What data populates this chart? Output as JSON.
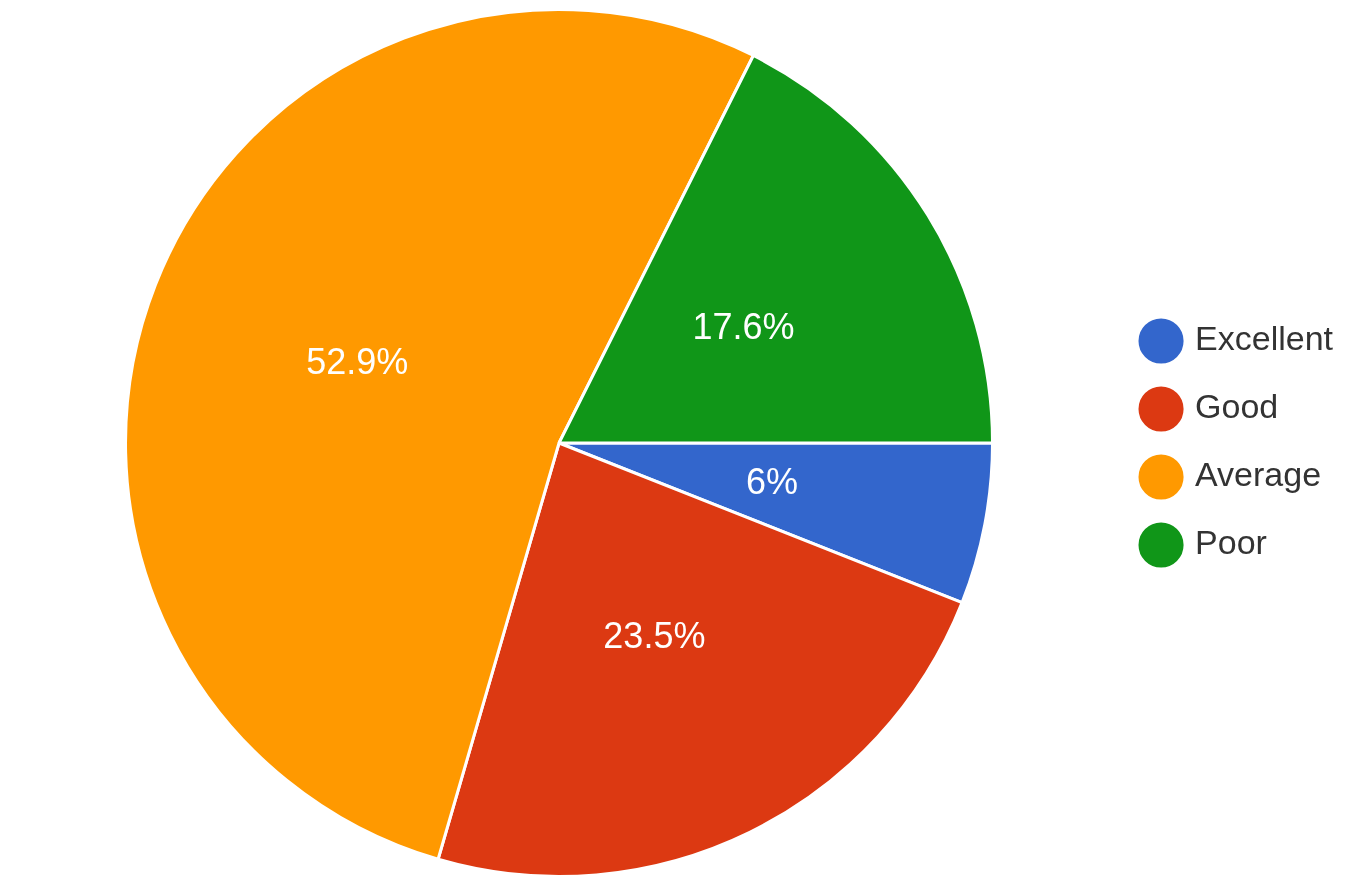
{
  "chart_data": {
    "type": "pie",
    "categories": [
      "Excellent",
      "Good",
      "Average",
      "Poor"
    ],
    "values": [
      6,
      23.5,
      52.9,
      17.6
    ],
    "colors": [
      "#3366cc",
      "#dc3912",
      "#ff9900",
      "#109618"
    ],
    "value_labels": [
      "6%",
      "23.5%",
      "52.9%",
      "17.6%"
    ],
    "legend": "right"
  }
}
